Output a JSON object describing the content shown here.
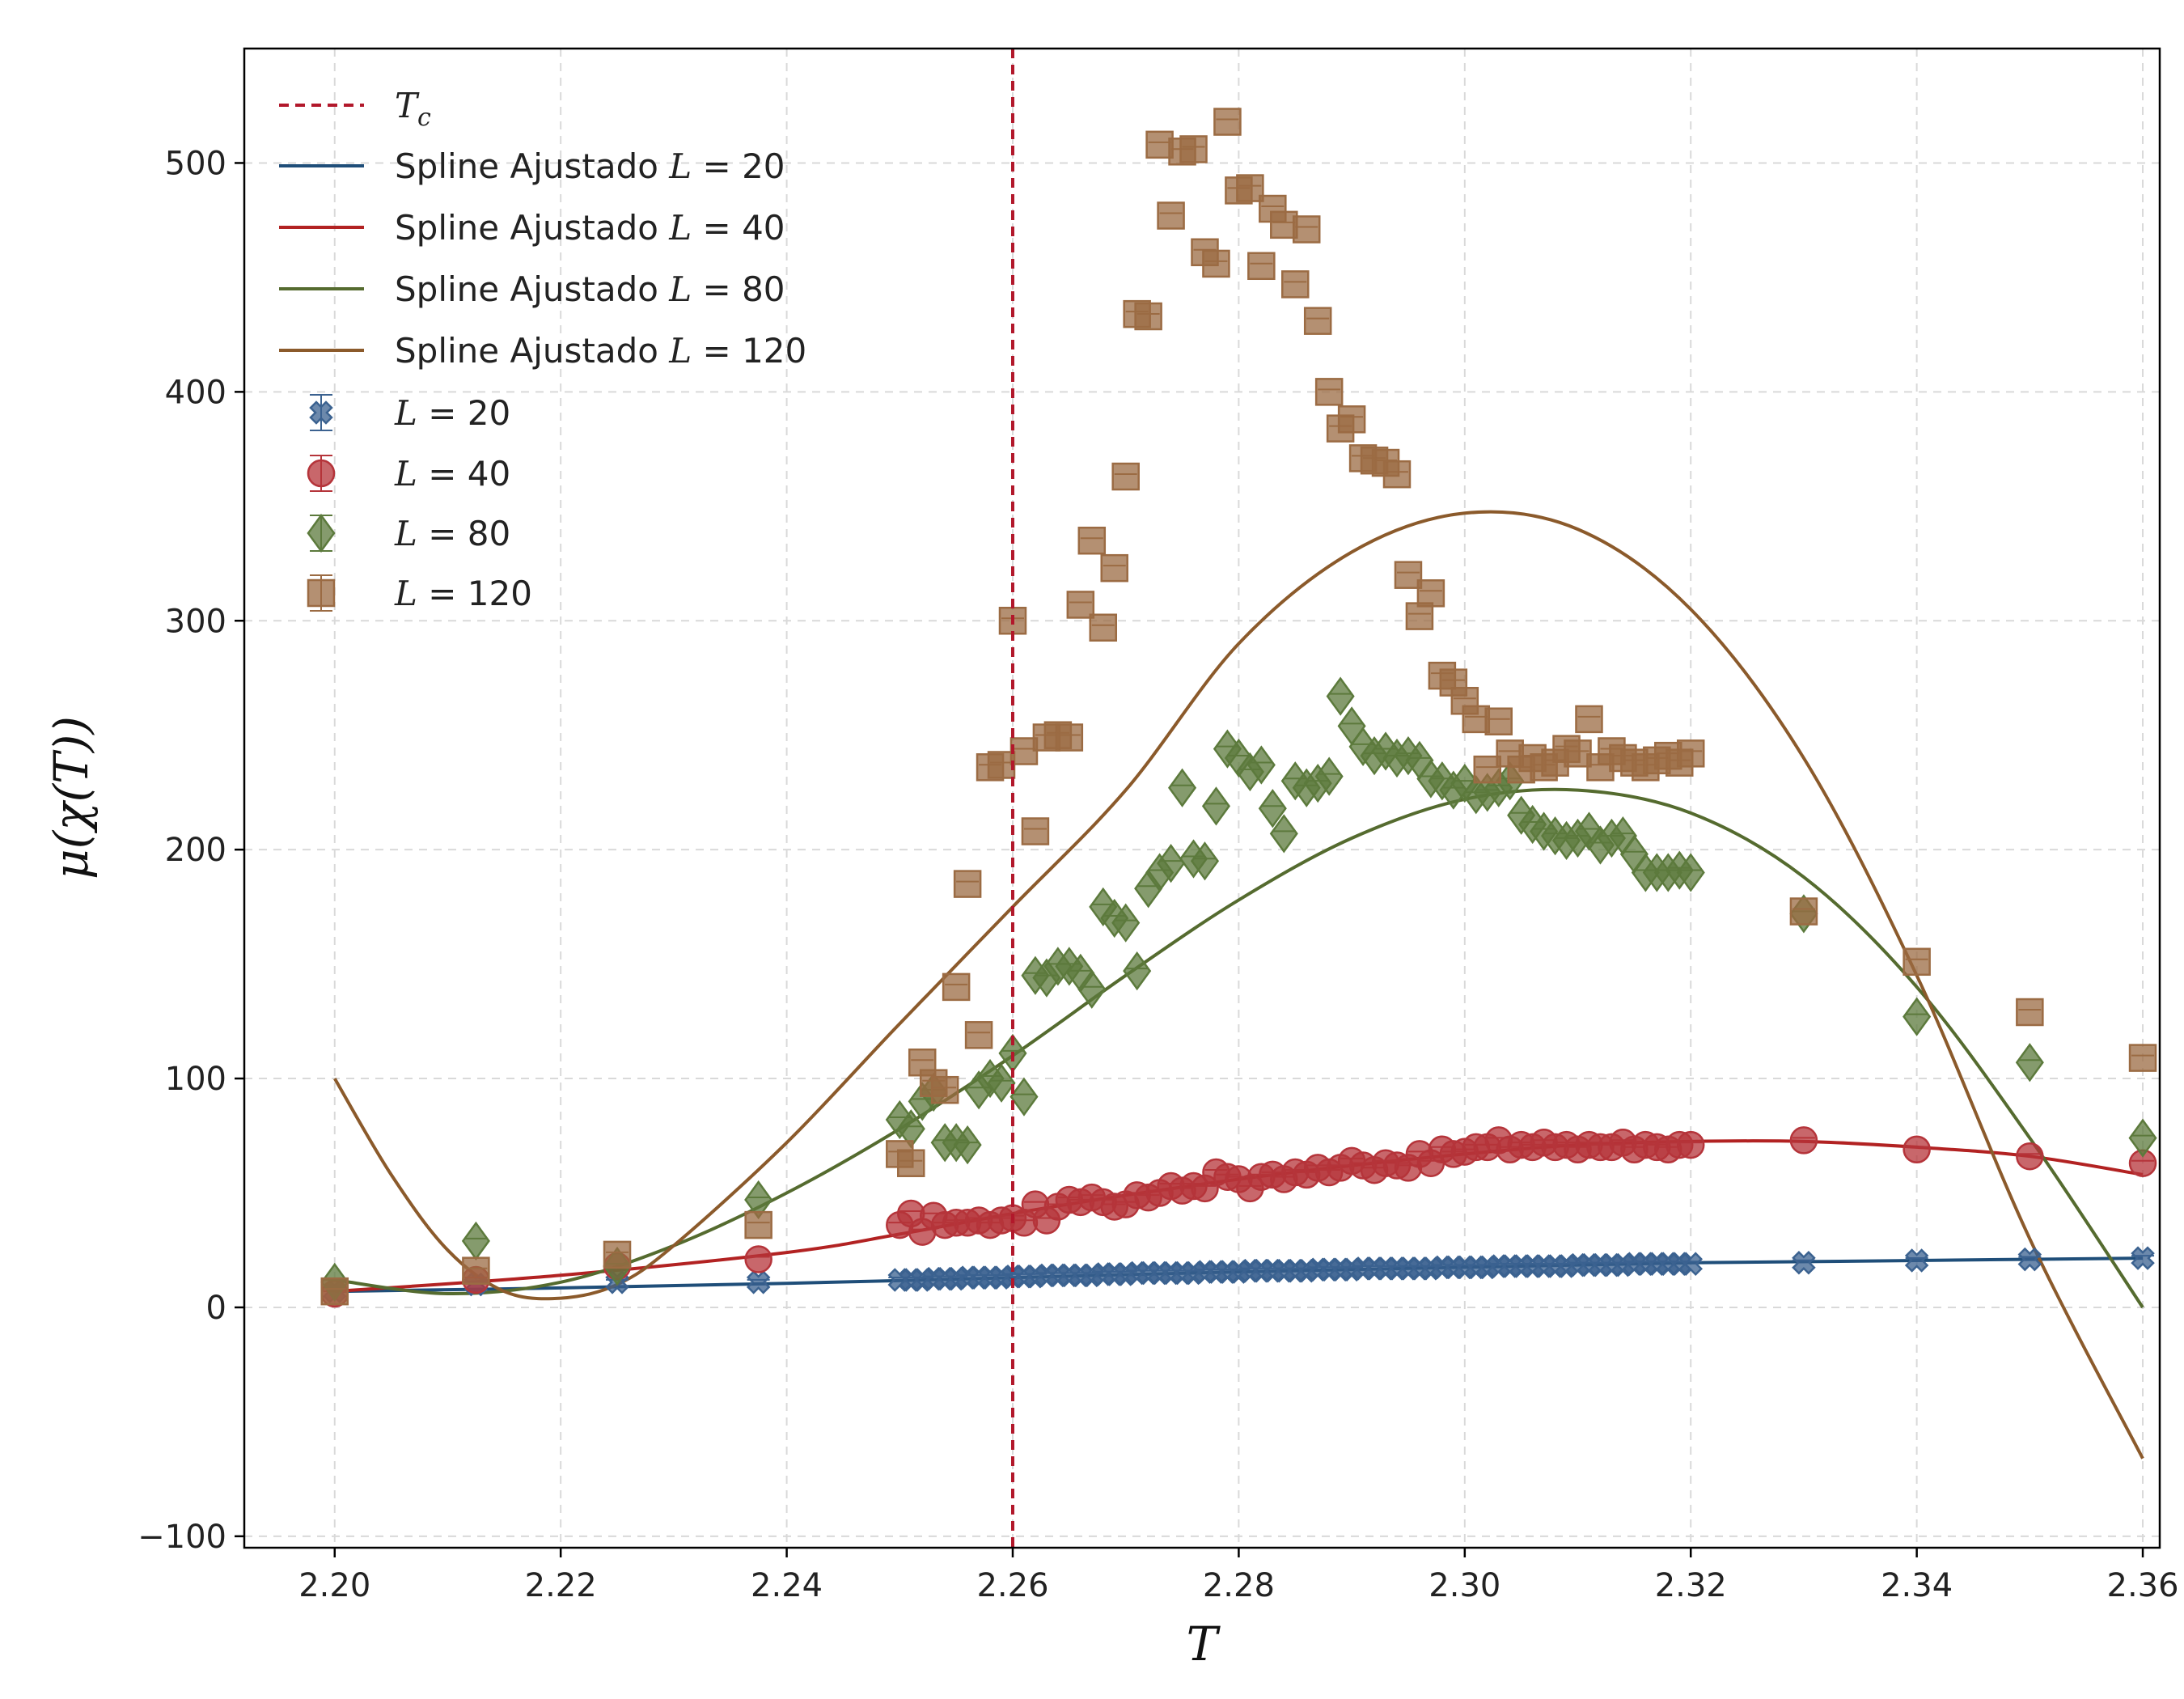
{
  "chart_data": {
    "type": "scatter",
    "xlabel": "T",
    "ylabel": "μ(χ(T))",
    "xlim": [
      2.192,
      2.3615
    ],
    "ylim": [
      -105,
      550
    ],
    "grid": true,
    "legend_position": "top-left",
    "xticks": [
      2.2,
      2.22,
      2.24,
      2.26,
      2.28,
      2.3,
      2.32,
      2.34,
      2.36
    ],
    "xtick_labels": [
      "2.20",
      "2.22",
      "2.24",
      "2.26",
      "2.28",
      "2.30",
      "2.32",
      "2.34",
      "2.36"
    ],
    "yticks": [
      -100,
      0,
      100,
      200,
      300,
      400,
      500
    ],
    "ytick_labels": [
      "−100",
      "0",
      "100",
      "200",
      "300",
      "400",
      "500"
    ],
    "reference_line": {
      "name_prefix": "T",
      "name_subscript": "c",
      "x": 2.26,
      "color": "#b2182b",
      "style": "dashed"
    },
    "splines": [
      {
        "label_prefix": "Spline Ajustado ",
        "label_var": "L",
        "label_value": "= 20",
        "color": "#1f4e79",
        "x": [
          2.2,
          2.22,
          2.24,
          2.26,
          2.28,
          2.3,
          2.32,
          2.34,
          2.36
        ],
        "y": [
          7,
          8.5,
          10.5,
          13,
          15.5,
          17.5,
          19.5,
          20.5,
          21.5
        ]
      },
      {
        "label_prefix": "Spline Ajustado ",
        "label_var": "L",
        "label_value": "= 40",
        "color": "#b22222",
        "x": [
          2.2,
          2.22,
          2.24,
          2.25,
          2.26,
          2.27,
          2.28,
          2.29,
          2.3,
          2.31,
          2.32,
          2.33,
          2.34,
          2.35,
          2.36
        ],
        "y": [
          7,
          14,
          24,
          32,
          41,
          49,
          56,
          62,
          67,
          71,
          72.5,
          72.5,
          70,
          66,
          58
        ]
      },
      {
        "label_prefix": "Spline Ajustado ",
        "label_var": "L",
        "label_value": "= 80",
        "color": "#556b2f",
        "x": [
          2.2,
          2.21,
          2.22,
          2.23,
          2.24,
          2.25,
          2.26,
          2.27,
          2.28,
          2.29,
          2.3,
          2.31,
          2.32,
          2.33,
          2.34,
          2.35,
          2.36
        ],
        "y": [
          12,
          6,
          11,
          27,
          50,
          78,
          110,
          145,
          178,
          205,
          222,
          226,
          216,
          188,
          140,
          74,
          0
        ]
      },
      {
        "label_prefix": "Spline Ajustado ",
        "label_var": "L",
        "label_value": "= 120",
        "color": "#8b5a2b",
        "x": [
          2.2,
          2.205,
          2.21,
          2.215,
          2.22,
          2.225,
          2.23,
          2.24,
          2.25,
          2.26,
          2.27,
          2.28,
          2.29,
          2.3,
          2.31,
          2.32,
          2.33,
          2.34,
          2.35,
          2.36
        ],
        "y": [
          100,
          58,
          25,
          7,
          4,
          10,
          27,
          72,
          124,
          175,
          226,
          290,
          330,
          347,
          340,
          305,
          240,
          145,
          30,
          -66
        ]
      }
    ],
    "series": [
      {
        "label_var": "L",
        "label_value": "= 20",
        "marker": "x",
        "color": "#3b6290",
        "x": [
          2.2,
          2.2125,
          2.225,
          2.2375,
          2.25,
          2.251,
          2.252,
          2.253,
          2.254,
          2.255,
          2.256,
          2.257,
          2.258,
          2.259,
          2.26,
          2.261,
          2.262,
          2.263,
          2.264,
          2.265,
          2.266,
          2.267,
          2.268,
          2.269,
          2.27,
          2.271,
          2.272,
          2.273,
          2.274,
          2.275,
          2.276,
          2.277,
          2.278,
          2.279,
          2.28,
          2.281,
          2.282,
          2.283,
          2.284,
          2.285,
          2.286,
          2.287,
          2.288,
          2.289,
          2.29,
          2.291,
          2.292,
          2.293,
          2.294,
          2.295,
          2.296,
          2.297,
          2.298,
          2.299,
          2.3,
          2.301,
          2.302,
          2.303,
          2.304,
          2.305,
          2.306,
          2.307,
          2.308,
          2.309,
          2.31,
          2.311,
          2.312,
          2.313,
          2.314,
          2.315,
          2.316,
          2.317,
          2.318,
          2.319,
          2.32,
          2.33,
          2.34,
          2.35,
          2.36
        ],
        "y": [
          7,
          10,
          11,
          11,
          12,
          12,
          12,
          12.5,
          12.5,
          12.5,
          13,
          13,
          13,
          13,
          13.5,
          13.5,
          13.5,
          14,
          14,
          14,
          14,
          14,
          14.5,
          14.5,
          14.5,
          15,
          15,
          15,
          15,
          15,
          15,
          15.5,
          15.5,
          15.5,
          15.5,
          16,
          16,
          16,
          16,
          16,
          16,
          16.5,
          16.5,
          16.5,
          16.5,
          17,
          17,
          17,
          17,
          17,
          17,
          17,
          17.5,
          17.5,
          17.5,
          17.5,
          17.5,
          18,
          18,
          18,
          18,
          18,
          18,
          18,
          18.5,
          18.5,
          18.5,
          18.5,
          18.5,
          19,
          19,
          19,
          19,
          19,
          19,
          19.5,
          20.5,
          21,
          21.5
        ]
      },
      {
        "label_var": "L",
        "label_value": "= 40",
        "marker": "o",
        "color": "#b5343a",
        "x": [
          2.2,
          2.2125,
          2.225,
          2.2375,
          2.25,
          2.251,
          2.252,
          2.253,
          2.254,
          2.255,
          2.256,
          2.257,
          2.258,
          2.259,
          2.26,
          2.261,
          2.262,
          2.263,
          2.264,
          2.265,
          2.266,
          2.267,
          2.268,
          2.269,
          2.27,
          2.271,
          2.272,
          2.273,
          2.274,
          2.275,
          2.276,
          2.277,
          2.278,
          2.279,
          2.28,
          2.281,
          2.282,
          2.283,
          2.284,
          2.285,
          2.286,
          2.287,
          2.288,
          2.289,
          2.29,
          2.291,
          2.292,
          2.293,
          2.294,
          2.295,
          2.296,
          2.297,
          2.298,
          2.299,
          2.3,
          2.301,
          2.302,
          2.303,
          2.304,
          2.305,
          2.306,
          2.307,
          2.308,
          2.309,
          2.31,
          2.311,
          2.312,
          2.313,
          2.314,
          2.315,
          2.316,
          2.317,
          2.318,
          2.319,
          2.32,
          2.33,
          2.34,
          2.35,
          2.36
        ],
        "y": [
          6,
          12,
          18,
          21,
          36,
          41,
          33,
          40,
          36,
          37,
          37,
          38,
          36,
          38,
          39,
          37,
          45,
          38,
          44,
          47,
          46,
          48,
          46,
          44,
          45,
          49,
          48,
          50,
          53,
          51,
          53,
          52,
          59,
          57,
          56,
          52,
          57,
          58,
          56,
          59,
          58,
          61,
          59,
          61,
          64,
          62,
          60,
          63,
          62,
          61,
          67,
          63,
          69,
          67,
          68,
          70,
          70,
          73,
          69,
          71,
          70,
          72,
          70,
          71,
          69,
          71,
          70,
          70,
          72,
          69,
          71,
          70,
          69,
          71,
          71,
          73,
          69,
          66,
          63
        ]
      },
      {
        "label_var": "L",
        "label_value": "= 80",
        "marker": "D",
        "color": "#5c7a3c",
        "x": [
          2.2,
          2.2125,
          2.225,
          2.2375,
          2.25,
          2.251,
          2.252,
          2.253,
          2.254,
          2.255,
          2.256,
          2.257,
          2.258,
          2.259,
          2.26,
          2.261,
          2.262,
          2.263,
          2.264,
          2.265,
          2.266,
          2.267,
          2.268,
          2.269,
          2.27,
          2.271,
          2.272,
          2.273,
          2.274,
          2.275,
          2.276,
          2.277,
          2.278,
          2.279,
          2.28,
          2.281,
          2.282,
          2.283,
          2.284,
          2.285,
          2.286,
          2.287,
          2.288,
          2.289,
          2.29,
          2.291,
          2.292,
          2.293,
          2.294,
          2.295,
          2.296,
          2.297,
          2.298,
          2.299,
          2.3,
          2.301,
          2.302,
          2.303,
          2.304,
          2.305,
          2.306,
          2.307,
          2.308,
          2.309,
          2.31,
          2.311,
          2.312,
          2.313,
          2.314,
          2.315,
          2.316,
          2.317,
          2.318,
          2.319,
          2.32,
          2.33,
          2.34,
          2.35,
          2.36
        ],
        "y": [
          11,
          29,
          18,
          47,
          82,
          78,
          90,
          94,
          72,
          72,
          71,
          95,
          100,
          98,
          111,
          92,
          145,
          144,
          149,
          149,
          146,
          139,
          175,
          170,
          168,
          147,
          183,
          190,
          194,
          227,
          196,
          195,
          219,
          244,
          240,
          234,
          237,
          218,
          207,
          230,
          227,
          229,
          232,
          267,
          254,
          245,
          241,
          243,
          240,
          241,
          239,
          231,
          230,
          226,
          229,
          224,
          225,
          227,
          230,
          215,
          211,
          208,
          206,
          204,
          205,
          208,
          202,
          205,
          206,
          198,
          190,
          190,
          190,
          191,
          190,
          172,
          127,
          107,
          74
        ]
      },
      {
        "label_var": "L",
        "label_value": "= 120",
        "marker": "s",
        "color": "#9b6b43",
        "x": [
          2.2,
          2.2125,
          2.225,
          2.2375,
          2.25,
          2.251,
          2.252,
          2.253,
          2.254,
          2.255,
          2.256,
          2.257,
          2.258,
          2.259,
          2.26,
          2.261,
          2.262,
          2.263,
          2.264,
          2.265,
          2.266,
          2.267,
          2.268,
          2.269,
          2.27,
          2.271,
          2.272,
          2.273,
          2.274,
          2.275,
          2.276,
          2.277,
          2.278,
          2.279,
          2.28,
          2.281,
          2.282,
          2.283,
          2.284,
          2.285,
          2.286,
          2.287,
          2.288,
          2.289,
          2.29,
          2.291,
          2.292,
          2.293,
          2.294,
          2.295,
          2.296,
          2.297,
          2.298,
          2.299,
          2.3,
          2.301,
          2.302,
          2.303,
          2.304,
          2.305,
          2.306,
          2.307,
          2.308,
          2.309,
          2.31,
          2.311,
          2.312,
          2.313,
          2.314,
          2.315,
          2.316,
          2.317,
          2.318,
          2.319,
          2.32,
          2.33,
          2.34,
          2.35,
          2.36
        ],
        "y": [
          7,
          16,
          23,
          36,
          67,
          63,
          107,
          98,
          95,
          140,
          185,
          119,
          236,
          237,
          300,
          243,
          208,
          249,
          250,
          249,
          307,
          335,
          297,
          323,
          363,
          434,
          433,
          508,
          477,
          505,
          506,
          461,
          456,
          518,
          488,
          489,
          455,
          480,
          473,
          447,
          471,
          431,
          400,
          384,
          388,
          371,
          370,
          369,
          364,
          320,
          302,
          312,
          276,
          273,
          265,
          257,
          235,
          256,
          242,
          235,
          240,
          236,
          238,
          244,
          242,
          257,
          236,
          243,
          240,
          238,
          236,
          239,
          241,
          238,
          242,
          173,
          151,
          129,
          109
        ]
      }
    ]
  }
}
